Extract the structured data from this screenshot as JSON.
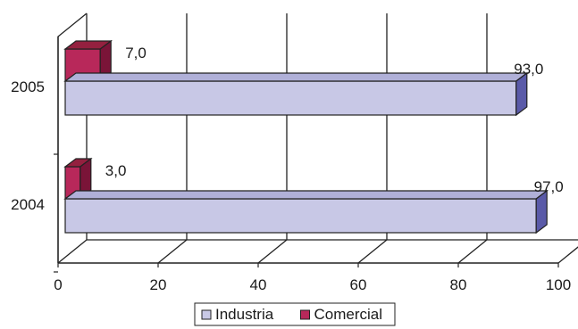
{
  "chart_data": {
    "type": "bar",
    "orientation": "horizontal",
    "three_d": true,
    "categories": [
      "2004",
      "2005"
    ],
    "series": [
      {
        "name": "Industria",
        "values": [
          97.0,
          93.0
        ],
        "labels": [
          "97,0",
          "93,0"
        ],
        "color": "#c8c8e6",
        "side_color": "#5a5aa8",
        "top_color": "#b0b0d8"
      },
      {
        "name": "Comercial",
        "values": [
          3.0,
          7.0
        ],
        "labels": [
          "3,0",
          "7,0"
        ],
        "color": "#b8285a",
        "side_color": "#7a1438",
        "top_color": "#94203f"
      }
    ],
    "x_ticks": [
      "0",
      "20",
      "40",
      "60",
      "80",
      "100"
    ],
    "xlim": [
      0,
      100
    ],
    "grid": true,
    "legend": "bottom",
    "title": "",
    "xlabel": "",
    "ylabel": ""
  }
}
